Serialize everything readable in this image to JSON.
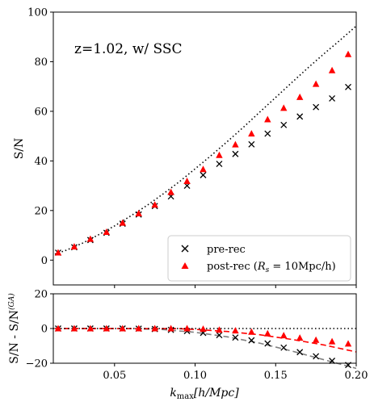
{
  "chart_data": [
    {
      "type": "scatter",
      "annotation": "z=1.02, w/ SSC",
      "xlabel": "",
      "ylabel": "S/N",
      "xlim": [
        0.012,
        0.2
      ],
      "ylim": [
        -10,
        100
      ],
      "xticks": [],
      "yticks": [
        0,
        20,
        40,
        60,
        80,
        100
      ],
      "ytick_labels": [
        "0",
        "20",
        "40",
        "60",
        "80",
        "100"
      ],
      "legend_position": "lower-right",
      "series": [
        {
          "name": "pre-rec",
          "marker": "x",
          "color": "#000000",
          "x": [
            0.015,
            0.025,
            0.035,
            0.045,
            0.055,
            0.065,
            0.075,
            0.085,
            0.095,
            0.105,
            0.115,
            0.125,
            0.135,
            0.145,
            0.155,
            0.165,
            0.175,
            0.185,
            0.195
          ],
          "y": [
            3.0,
            5.2,
            8.1,
            11.0,
            14.7,
            18.4,
            21.8,
            25.7,
            30.0,
            34.3,
            38.8,
            42.8,
            46.7,
            51.0,
            54.5,
            57.9,
            61.7,
            65.2,
            69.8
          ]
        },
        {
          "name": "post-rec (R_s = 10Mpc/h)",
          "marker": "triangle",
          "color": "#ff0000",
          "x": [
            0.015,
            0.025,
            0.035,
            0.045,
            0.055,
            0.065,
            0.075,
            0.085,
            0.095,
            0.105,
            0.115,
            0.125,
            0.135,
            0.145,
            0.155,
            0.165,
            0.175,
            0.185,
            0.195
          ],
          "y": [
            3.0,
            5.4,
            8.5,
            11.3,
            15.0,
            18.8,
            22.3,
            27.4,
            31.8,
            36.6,
            42.3,
            46.6,
            51.0,
            56.7,
            61.3,
            65.7,
            71.0,
            76.5,
            83.0
          ]
        },
        {
          "name": "",
          "style": "dotted-line",
          "color": "#000000",
          "x": [
            0.013,
            0.02,
            0.03,
            0.04,
            0.05,
            0.06,
            0.07,
            0.08,
            0.09,
            0.1,
            0.11,
            0.12,
            0.13,
            0.14,
            0.15,
            0.16,
            0.17,
            0.18,
            0.19,
            0.2
          ],
          "y": [
            2.4,
            4.0,
            6.8,
            10.2,
            13.8,
            17.8,
            22.0,
            26.6,
            31.5,
            36.8,
            42.2,
            47.8,
            53.6,
            59.6,
            65.6,
            71.6,
            77.5,
            83.2,
            88.7,
            94.4
          ]
        }
      ]
    },
    {
      "type": "scatter",
      "xlabel": "k_max[h/Mpc]",
      "ylabel": "S/N - S/N^(GA)",
      "xlim": [
        0.012,
        0.2
      ],
      "ylim": [
        -20,
        20
      ],
      "xticks": [
        0.05,
        0.1,
        0.15,
        0.2
      ],
      "xtick_labels": [
        "0.05",
        "0.10",
        "0.15",
        "0.20"
      ],
      "yticks": [
        -20,
        0,
        20
      ],
      "ytick_labels": [
        "−20",
        "0",
        "20"
      ],
      "series": [
        {
          "name": "pre-rec",
          "marker": "x",
          "color": "#000000",
          "x": [
            0.015,
            0.025,
            0.035,
            0.045,
            0.055,
            0.065,
            0.075,
            0.085,
            0.095,
            0.105,
            0.115,
            0.125,
            0.135,
            0.145,
            0.155,
            0.165,
            0.175,
            0.185,
            0.195
          ],
          "y": [
            0.0,
            0.0,
            0.0,
            0.0,
            0.0,
            -0.1,
            -0.3,
            -0.8,
            -1.5,
            -2.5,
            -3.8,
            -5.2,
            -6.8,
            -8.6,
            -11.0,
            -13.6,
            -16.0,
            -18.6,
            -21.0
          ]
        },
        {
          "name": "post-rec",
          "marker": "triangle",
          "color": "#ff0000",
          "x": [
            0.015,
            0.025,
            0.035,
            0.045,
            0.055,
            0.065,
            0.075,
            0.085,
            0.095,
            0.105,
            0.115,
            0.125,
            0.135,
            0.145,
            0.155,
            0.165,
            0.175,
            0.185,
            0.195
          ],
          "y": [
            0.0,
            0.0,
            0.0,
            0.0,
            0.0,
            0.0,
            0.0,
            0.0,
            0.0,
            -0.3,
            -0.8,
            -1.2,
            -2.0,
            -2.9,
            -4.0,
            -5.4,
            -6.6,
            -7.5,
            -8.8
          ]
        },
        {
          "name": "",
          "style": "dashed-line",
          "color": "#808080",
          "x": [
            0.013,
            0.06,
            0.08,
            0.1,
            0.12,
            0.14,
            0.16,
            0.18,
            0.2
          ],
          "y": [
            0.0,
            -0.1,
            -0.6,
            -2.2,
            -4.8,
            -8.4,
            -13.0,
            -18.0,
            -23.0
          ]
        },
        {
          "name": "",
          "style": "dashed-line",
          "color": "#ff0000",
          "x": [
            0.013,
            0.09,
            0.1,
            0.12,
            0.14,
            0.16,
            0.18,
            0.2
          ],
          "y": [
            0.0,
            -0.1,
            -0.5,
            -1.7,
            -3.6,
            -6.3,
            -9.5,
            -13.5
          ]
        },
        {
          "name": "",
          "style": "dotted-line",
          "color": "#000000",
          "x": [
            0.012,
            0.2
          ],
          "y": [
            0.0,
            0.0
          ]
        }
      ]
    }
  ],
  "legend": [
    {
      "label": "pre-rec",
      "marker": "x"
    },
    {
      "label_main": "post-rec (",
      "label_sub_base": "R",
      "label_sub": "s",
      "label_rest": " = 10Mpc/h)",
      "marker": "triangle"
    }
  ],
  "labels": {
    "top_ylabel": "S/N",
    "bottom_ylabel_main": "S/N - S/N",
    "bottom_ylabel_sup": "(GA)",
    "xlabel_k": "k",
    "xlabel_sub": "max",
    "xlabel_units": "[h/Mpc]"
  }
}
